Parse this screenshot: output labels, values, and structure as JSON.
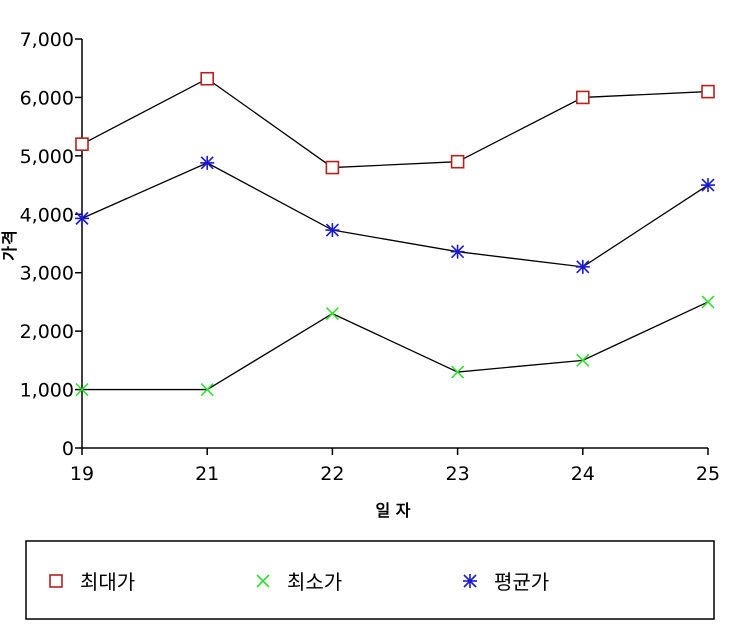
{
  "chart_data": {
    "type": "line",
    "title": "",
    "xlabel": "일 자",
    "ylabel": "가격",
    "categories": [
      "19",
      "21",
      "22",
      "23",
      "24",
      "25"
    ],
    "y_ticks": [
      "0",
      "1,000",
      "2,000",
      "3,000",
      "4,000",
      "5,000",
      "6,000",
      "7,000"
    ],
    "ylim": [
      0,
      7000
    ],
    "grid": false,
    "legend_position": "bottom",
    "series": [
      {
        "name": "최대가",
        "values": [
          5200,
          6320,
          4800,
          4900,
          6000,
          6100
        ],
        "color": "#b22222",
        "marker": "square-icon"
      },
      {
        "name": "최소가",
        "values": [
          1000,
          1000,
          2300,
          1300,
          1500,
          2500
        ],
        "color": "#33dd33",
        "marker": "x-icon"
      },
      {
        "name": "평균가",
        "values": [
          3930,
          4880,
          3730,
          3360,
          3100,
          4500
        ],
        "color": "#1a1acc",
        "marker": "asterisk-icon"
      }
    ],
    "line_color": "#000000"
  }
}
